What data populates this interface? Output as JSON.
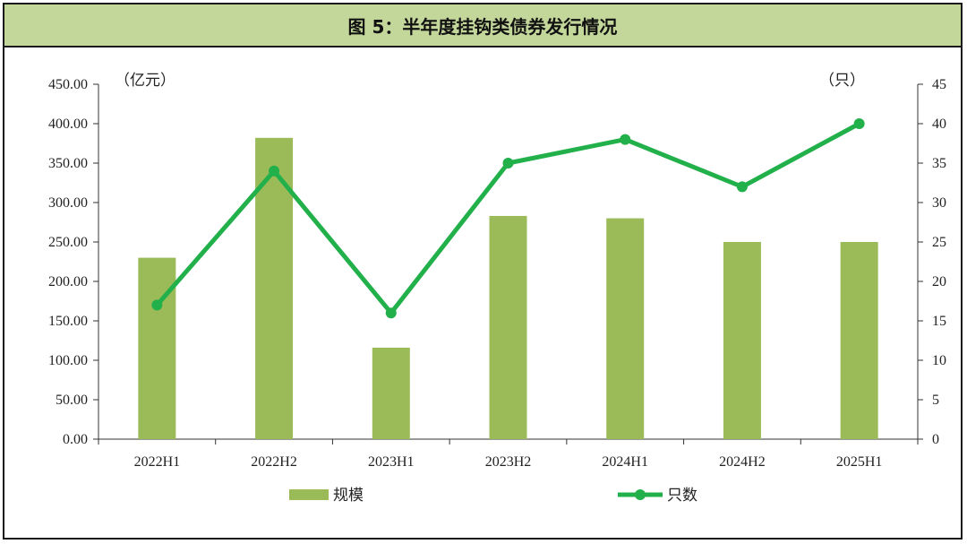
{
  "title": "图 5：半年度挂钩类债券发行情况",
  "chart_data": {
    "type": "bar+line",
    "categories": [
      "2022H1",
      "2022H2",
      "2023H1",
      "2023H2",
      "2024H1",
      "2024H2",
      "2025H1"
    ],
    "series": [
      {
        "name": "规模",
        "type": "bar",
        "axis": "left",
        "color": "#9bbb59",
        "values": [
          230,
          382,
          116,
          283,
          280,
          250,
          250
        ]
      },
      {
        "name": "只数",
        "type": "line",
        "axis": "right",
        "color": "#22b04b",
        "values": [
          17,
          34,
          16,
          35,
          38,
          32,
          40
        ]
      }
    ],
    "y_left": {
      "unit_label": "（亿元）",
      "range": [
        0,
        450
      ],
      "step": 50,
      "decimals": 2
    },
    "y_right": {
      "unit_label": "（只）",
      "range": [
        0,
        45
      ],
      "step": 5,
      "decimals": 0
    },
    "grid": false,
    "legend_position": "bottom"
  }
}
